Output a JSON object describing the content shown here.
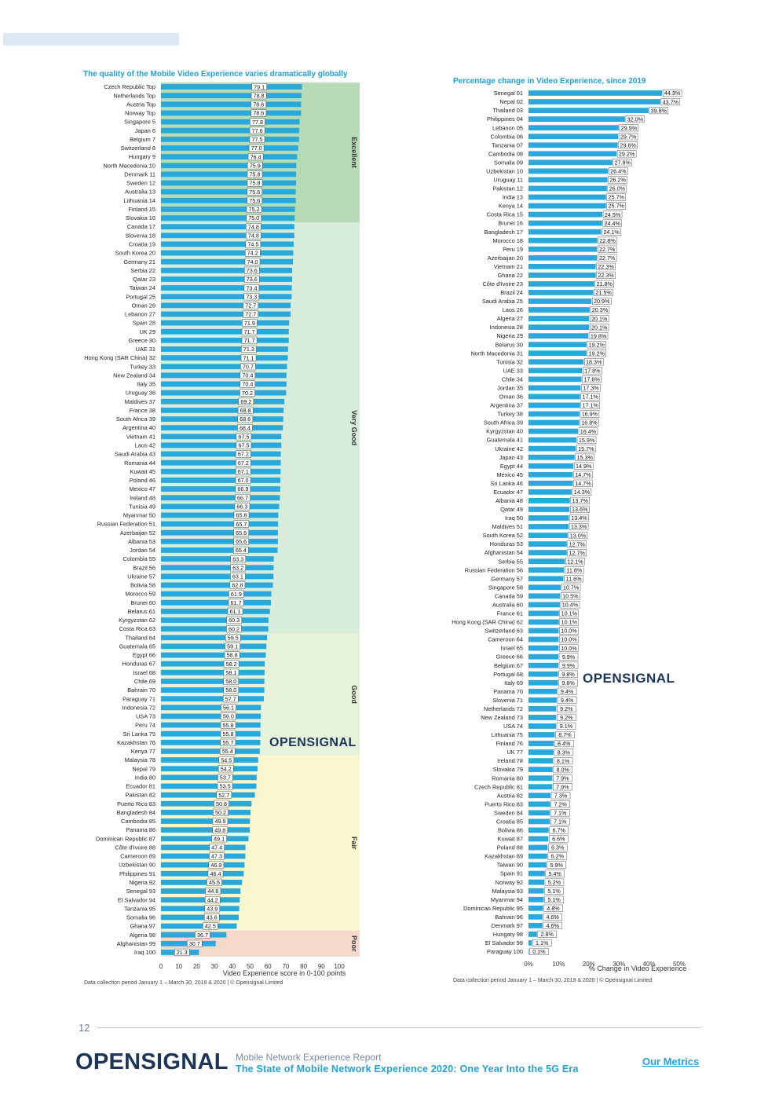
{
  "left_chart": {
    "title": "The quality of the Mobile Video Experience varies dramatically globally",
    "footnote": "Data collection period January 1 – March  30, 2019 & 2020 | © Opensignal Limited",
    "brand": "OPENSIGNAL",
    "bands": [
      {
        "label": "Excellent",
        "from": 1,
        "to": 16,
        "color": "#b7dbb5"
      },
      {
        "label": "Very Good",
        "from": 17,
        "to": 63,
        "color": "#d8ecdc"
      },
      {
        "label": "Good",
        "from": 64,
        "to": 77,
        "color": "#e6f2d9"
      },
      {
        "label": "Fair",
        "from": 78,
        "to": 97,
        "color": "#f9f7cf"
      },
      {
        "label": "Poor",
        "from": 98,
        "to": 100,
        "color": "#f7d9cc"
      }
    ],
    "chart_data": {
      "type": "bar",
      "orientation": "horizontal",
      "title": "The quality of the Mobile Video Experience varies dramatically globally",
      "xlabel": "Video Experience score in 0-100 points",
      "xlim": [
        0,
        100
      ],
      "xticks": [
        "0",
        "10",
        "20",
        "30",
        "40",
        "50",
        "60",
        "70",
        "80",
        "90",
        "100"
      ],
      "categories": [
        "Czech Republic Top",
        "Netherlands Top",
        "Austria Top",
        "Norway Top",
        "Singapore 5",
        "Japan 6",
        "Belgium 7",
        "Switzerland 8",
        "Hungary 9",
        "North Macedonia 10",
        "Denmark 11",
        "Sweden 12",
        "Australia 13",
        "Lithuania 14",
        "Finland 15",
        "Slovakia 16",
        "Canada 17",
        "Slovenia 18",
        "Croatia 19",
        "South Korea 20",
        "Germany 21",
        "Serbia 22",
        "Qatar 23",
        "Taiwan 24",
        "Portugal 25",
        "Oman 26",
        "Lebanon 27",
        "Spain 28",
        "UK 29",
        "Greece 30",
        "UAE 31",
        "Hong Kong (SAR China) 32",
        "Turkey 33",
        "New Zealand 34",
        "Italy 35",
        "Uruguay 36",
        "Maldives 37",
        "France 38",
        "South Africa 39",
        "Argentina 40",
        "Vietnam 41",
        "Laos 42",
        "Saudi Arabia 43",
        "Romania 44",
        "Kuwait 45",
        "Poland 46",
        "Mexico 47",
        "Ireland 48",
        "Tunisia 49",
        "Myanmar 50",
        "Russian Federation 51",
        "Azerbaijan 52",
        "Albania 53",
        "Jordan 54",
        "Colombia 55",
        "Brazil 56",
        "Ukraine 57",
        "Bolivia 58",
        "Morocco 59",
        "Brunei 60",
        "Belarus 61",
        "Kyrgyzstan 62",
        "Costa Rica 63",
        "Thailand 64",
        "Guatemala 65",
        "Egypt 66",
        "Honduras 67",
        "Israel 68",
        "Chile 69",
        "Bahrain 70",
        "Paraguay 71",
        "Indonesia 72",
        "USA 73",
        "Peru 74",
        "Sri Lanka 75",
        "Kazakhstan 76",
        "Kenya 77",
        "Malaysia 78",
        "Nepal 79",
        "India 80",
        "Ecuador 81",
        "Pakistan 82",
        "Puerto Rico 83",
        "Bangladesh 84",
        "Cambodia 85",
        "Panama 86",
        "Dominican Republic 87",
        "Côte d'Ivoire 88",
        "Cameroon 89",
        "Uzbekistan 90",
        "Philippines 91",
        "Nigeria 92",
        "Senegal 93",
        "El Salvador 94",
        "Tanzania 95",
        "Somalia 96",
        "Ghana 97",
        "Algeria 98",
        "Afghanistan 99",
        "Iraq 100"
      ],
      "values": [
        79.1,
        78.8,
        78.6,
        78.6,
        77.8,
        77.6,
        77.5,
        77.0,
        76.4,
        75.9,
        75.8,
        75.8,
        75.6,
        75.6,
        75.2,
        75.0,
        74.8,
        74.8,
        74.5,
        74.2,
        74.0,
        73.6,
        73.6,
        73.4,
        73.3,
        72.7,
        72.7,
        71.9,
        71.7,
        71.7,
        71.3,
        71.1,
        70.7,
        70.4,
        70.4,
        70.2,
        69.2,
        68.8,
        68.6,
        68.4,
        67.5,
        67.5,
        67.2,
        67.2,
        67.1,
        67.0,
        66.9,
        66.7,
        66.3,
        65.8,
        65.7,
        65.6,
        65.6,
        65.4,
        63.3,
        63.2,
        63.1,
        62.8,
        61.9,
        61.7,
        61.1,
        60.3,
        60.2,
        59.5,
        59.1,
        58.8,
        58.2,
        58.1,
        58.0,
        58.0,
        57.7,
        56.1,
        56.0,
        55.8,
        55.8,
        55.7,
        55.4,
        54.5,
        54.2,
        53.7,
        53.5,
        52.7,
        50.8,
        50.2,
        49.9,
        49.8,
        49.1,
        47.4,
        47.3,
        46.9,
        46.4,
        45.5,
        44.6,
        44.2,
        43.9,
        43.6,
        42.5,
        36.7,
        30.7,
        21.3
      ],
      "labels": [
        "79.1",
        "78.8",
        "78.6",
        "78.6",
        "77.8",
        "77.6",
        "77.5",
        "77.0",
        "76.4",
        "75.9",
        "75.8",
        "75.8",
        "75.6",
        "75.6",
        "75.2",
        "75.0",
        "74.8",
        "74.8",
        "74.5",
        "74.2",
        "74.0",
        "73.6",
        "73.6",
        "73.4",
        "73.3",
        "72.7",
        "72.7",
        "71.9",
        "71.7",
        "71.7",
        "71.3",
        "71.1",
        "70.7",
        "70.4",
        "70.4",
        "70.2",
        "69.2",
        "68.8",
        "68.6",
        "68.4",
        "67.5",
        "67.5",
        "67.2",
        "67.2",
        "67.1",
        "67.0",
        "66.9",
        "66.7",
        "66.3",
        "65.8",
        "65.7",
        "65.6",
        "65.6",
        "65.4",
        "63.3",
        "63.2",
        "63.1",
        "62.8",
        "61.9",
        "61.7",
        "61.1",
        "60.3",
        "60.2",
        "59.5",
        "59.1",
        "58.8",
        "58.2",
        "58.1",
        "58.0",
        "58.0",
        "57.7",
        "56.1",
        "56.0",
        "55.8",
        "55.8",
        "55.7",
        "55.4",
        "54.5",
        "54.2",
        "53.7",
        "53.5",
        "52.7",
        "50.8",
        "50.2",
        "49.9",
        "49.8",
        "49.1",
        "47.4",
        "47.3",
        "46.9",
        "46.4",
        "45.5",
        "44.6",
        "44.2",
        "43.9",
        "43.6",
        "42.5",
        "36.7",
        "30.7",
        "21.3"
      ],
      "bar_color": "#29a8dc"
    }
  },
  "right_chart": {
    "title": "Percentage change in Video Experience, since 2019",
    "footnote": "Data collection period January 1 – March  30, 2019 & 2020 | © Opensignal Limited",
    "brand": "OPENSIGNAL",
    "chart_data": {
      "type": "bar",
      "orientation": "horizontal",
      "title": "Percentage change in Video Experience, since 2019",
      "xlabel": "% Change in Video Experience",
      "xlim": [
        0,
        50
      ],
      "xticks": [
        "0%",
        "10%",
        "20%",
        "30%",
        "40%",
        "50%"
      ],
      "categories": [
        "Senegal 01",
        "Nepal 02",
        "Thailand 03",
        "Philippines 04",
        "Lebanon 05",
        "Colombia 06",
        "Tanzania 07",
        "Cambodia 08",
        "Somalia 09",
        "Uzbekistan 10",
        "Uruguay 11",
        "Pakistan 12",
        "India 13",
        "Kenya 14",
        "Costa Rica 15",
        "Brunei 16",
        "Bangladesh 17",
        "Morocco 18",
        "Peru 19",
        "Azerbaijan 20",
        "Vietnam 21",
        "Ghana 22",
        "Côte d'Ivoire 23",
        "Brazil 24",
        "Saudi Arabia 25",
        "Laos 26",
        "Algeria 27",
        "Indonesia 28",
        "Nigeria 29",
        "Belarus 30",
        "North Macedonia 31",
        "Tunisia 32",
        "UAE 33",
        "Chile 34",
        "Jordan 35",
        "Oman 36",
        "Argentina 37",
        "Turkey 38",
        "South Africa 39",
        "Kyrgyzstan 40",
        "Guatemala 41",
        "Ukraine 42",
        "Japan 43",
        "Egypt 44",
        "Mexico 45",
        "Sri Lanka 46",
        "Ecuador 47",
        "Albania 48",
        "Qatar 49",
        "Iraq 50",
        "Maldives 51",
        "South Korea 52",
        "Honduras 53",
        "Afghanistan 54",
        "Serbia 55",
        "Russian Federation 56",
        "Germany 57",
        "Singapore 58",
        "Canada 59",
        "Australia 60",
        "France 61",
        "Hong Kong (SAR China) 62",
        "Switzerland 63",
        "Cameroon 64",
        "Israel 65",
        "Greece 66",
        "Belgium 67",
        "Portugal 68",
        "Italy 69",
        "Panama 70",
        "Slovenia 71",
        "Netherlands 72",
        "New Zealand 73",
        "USA 74",
        "Lithuania 75",
        "Finland 76",
        "UK 77",
        "Ireland 78",
        "Slovakia 79",
        "Romania 80",
        "Czech Republic 81",
        "Austria 82",
        "Puerto Rico 83",
        "Sweden 84",
        "Croatia 85",
        "Bolivia 86",
        "Kuwait 87",
        "Poland 88",
        "Kazakhstan 89",
        "Taiwan 90",
        "Spain 91",
        "Norway 92",
        "Malaysia 93",
        "Myanmar 94",
        "Dominican Republic 95",
        "Bahrain 96",
        "Denmark 97",
        "Hungary 98",
        "El Salvador 99",
        "Paraguay 100"
      ],
      "values": [
        44.3,
        43.7,
        39.8,
        32.0,
        29.9,
        29.7,
        29.6,
        29.2,
        27.8,
        26.4,
        26.2,
        26.0,
        25.7,
        25.7,
        24.5,
        24.4,
        24.1,
        22.8,
        22.7,
        22.7,
        22.3,
        22.3,
        21.8,
        21.5,
        20.9,
        20.3,
        20.1,
        20.1,
        19.8,
        19.2,
        19.2,
        18.3,
        17.8,
        17.6,
        17.3,
        17.1,
        17.1,
        16.9,
        16.8,
        16.4,
        15.9,
        15.7,
        15.3,
        14.9,
        14.7,
        14.7,
        14.3,
        13.7,
        13.6,
        13.4,
        13.3,
        13.0,
        12.7,
        12.7,
        12.1,
        11.8,
        11.6,
        10.7,
        10.5,
        10.4,
        10.1,
        10.1,
        10.0,
        10.0,
        10.0,
        9.9,
        9.9,
        9.8,
        9.8,
        9.4,
        9.4,
        9.2,
        9.2,
        9.1,
        8.7,
        8.4,
        8.3,
        8.1,
        8.0,
        7.9,
        7.9,
        7.3,
        7.2,
        7.1,
        7.1,
        6.7,
        6.6,
        6.3,
        6.2,
        5.9,
        5.4,
        5.2,
        5.1,
        5.1,
        4.8,
        4.6,
        4.6,
        2.8,
        1.1,
        0.1
      ],
      "labels": [
        "44.3%",
        "43.7%",
        "39.8%",
        "32.0%",
        "29.9%",
        "29.7%",
        "29.6%",
        "29.2%",
        "27.8%",
        "26.4%",
        "26.2%",
        "26.0%",
        "25.7%",
        "25.7%",
        "24.5%",
        "24.4%",
        "24.1%",
        "22.8%",
        "22.7%",
        "22.7%",
        "22.3%",
        "22.3%",
        "21.8%",
        "21.5%",
        "20.9%",
        "20.3%",
        "20.1%",
        "20.1%",
        "19.8%",
        "19.2%",
        "19.2%",
        "18.3%",
        "17.8%",
        "17.6%",
        "17.3%",
        "17.1%",
        "17.1%",
        "16.9%",
        "16.8%",
        "16.4%",
        "15.9%",
        "15.7%",
        "15.3%",
        "14.9%",
        "14.7%",
        "14.7%",
        "14.3%",
        "13.7%",
        "13.6%",
        "13.4%",
        "13.3%",
        "13.0%",
        "12.7%",
        "12.7%",
        "12.1%",
        "11.8%",
        "11.6%",
        "10.7%",
        "10.5%",
        "10.4%",
        "10.1%",
        "10.1%",
        "10.0%",
        "10.0%",
        "10.0%",
        "9.9%",
        "9.9%",
        "9.8%",
        "9.8%",
        "9.4%",
        "9.4%",
        "9.2%",
        "9.2%",
        "9.1%",
        "8.7%",
        "8.4%",
        "8.3%",
        "8.1%",
        "8.0%",
        "7.9%",
        "7.9%",
        "7.3%",
        "7.2%",
        "7.1%",
        "7.1%",
        "6.7%",
        "6.6%",
        "6.3%",
        "6.2%",
        "5.9%",
        "5.4%",
        "5.2%",
        "5.1%",
        "5.1%",
        "4.8%",
        "4.6%",
        "4.6%",
        "2.8%",
        "1.1%",
        "0.1%"
      ],
      "bar_color": "#29a8dc"
    }
  },
  "footer": {
    "page_number": "12",
    "logo": "OPENSIGNAL",
    "report_name": "Mobile Network Experience Report",
    "report_title": "The State of Mobile Network Experience 2020: One Year Into the 5G Era",
    "link": "Our Metrics"
  },
  "colors": {
    "accent": "#29a8dc",
    "title_blue": "#1f9fd6",
    "logo_navy": "#1d3557"
  }
}
